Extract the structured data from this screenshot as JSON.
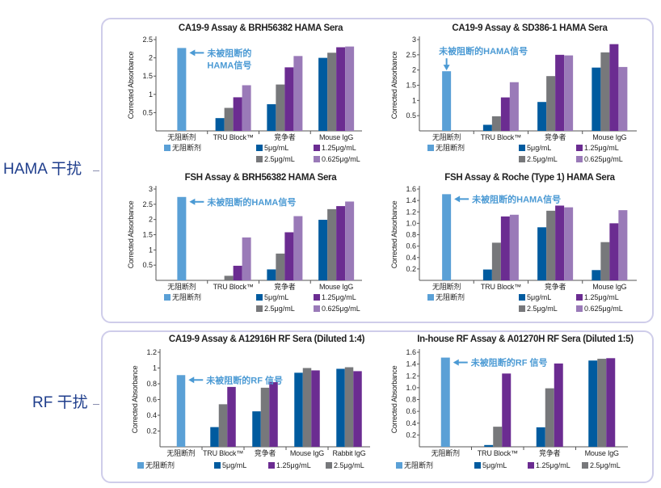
{
  "groups": {
    "hama": "HAMA 干扰",
    "rf": "RF 干扰"
  },
  "colors": {
    "no_blocker": "#5aa0d6",
    "5": "#005b9f",
    "2.5": "#77787b",
    "1.25": "#6b2c91",
    "0.625": "#9a7ab8",
    "annotation": "#4b9ad4"
  },
  "chart_data": [
    {
      "type": "bar",
      "title": "CA19-9 Assay & BRH56382 HAMA Sera",
      "ylabel": "Corrected Absorbance",
      "ylim": [
        0,
        2.5
      ],
      "yticks": [
        "0.5",
        "1",
        "1.5",
        "2",
        "2.5"
      ],
      "categories": [
        "无阻断剂",
        "TRU Block™",
        "竞争者",
        "Mouse IgG"
      ],
      "no_blocker": {
        "name": "无阻断剂",
        "value": 2.27
      },
      "series": [
        {
          "name": "5μg/mL",
          "key": "5",
          "values": [
            null,
            0.35,
            0.73,
            2.0
          ]
        },
        {
          "name": "2.5μg/mL",
          "key": "2.5",
          "values": [
            null,
            0.63,
            1.27,
            2.14
          ]
        },
        {
          "name": "1.25μg/mL",
          "key": "1.25",
          "values": [
            null,
            0.92,
            1.74,
            2.29
          ]
        },
        {
          "name": "0.625μg/mL",
          "key": "0.625",
          "values": [
            null,
            1.25,
            2.05,
            2.31
          ]
        }
      ],
      "annotation": [
        "未被阻断的",
        "HAMA信号"
      ]
    },
    {
      "type": "bar",
      "title": "CA19-9 Assay & SD386-1 HAMA Sera",
      "ylabel": "Corrected Absorbance",
      "ylim": [
        0,
        3
      ],
      "yticks": [
        "0.5",
        "1",
        "1.5",
        "2",
        "2.5",
        "3"
      ],
      "categories": [
        "无阻断剂",
        "TRU Block™",
        "竞争者",
        "Mouse IgG"
      ],
      "no_blocker": {
        "name": "无阻断剂",
        "value": 1.96
      },
      "series": [
        {
          "name": "5μg/mL",
          "key": "5",
          "values": [
            null,
            0.2,
            0.95,
            2.08
          ]
        },
        {
          "name": "2.5μg/mL",
          "key": "2.5",
          "values": [
            null,
            0.48,
            1.8,
            2.58
          ]
        },
        {
          "name": "1.25μg/mL",
          "key": "1.25",
          "values": [
            null,
            1.1,
            2.5,
            2.85
          ]
        },
        {
          "name": "0.625μg/mL",
          "key": "0.625",
          "values": [
            null,
            1.6,
            2.48,
            2.1
          ]
        }
      ],
      "annotation": [
        "未被阻断的HAMA信号"
      ]
    },
    {
      "type": "bar",
      "title": "FSH Assay & BRH56382 HAMA Sera",
      "ylabel": "Corrected Absorbance",
      "ylim": [
        0,
        3
      ],
      "yticks": [
        "0.5",
        "1",
        "1.5",
        "2",
        "2.5",
        "3"
      ],
      "categories": [
        "无阻断剂",
        "TRU Block™",
        "竞争者",
        "Mouse IgG"
      ],
      "no_blocker": {
        "name": "无阻断剂",
        "value": 2.74
      },
      "series": [
        {
          "name": "5μg/mL",
          "key": "5",
          "values": [
            null,
            0,
            0.36,
            1.99
          ]
        },
        {
          "name": "2.5μg/mL",
          "key": "2.5",
          "values": [
            null,
            0.15,
            0.88,
            2.34
          ]
        },
        {
          "name": "1.25μg/mL",
          "key": "1.25",
          "values": [
            null,
            0.48,
            1.58,
            2.44
          ]
        },
        {
          "name": "0.625μg/mL",
          "key": "0.625",
          "values": [
            null,
            1.41,
            2.11,
            2.59
          ]
        }
      ],
      "annotation": [
        "未被阻断的HAMA信号"
      ]
    },
    {
      "type": "bar",
      "title": "FSH Assay & Roche (Type 1) HAMA Sera",
      "ylabel": "Corrected Absorbance",
      "ylim": [
        0,
        1.6
      ],
      "yticks": [
        "0.2",
        "0.4",
        "0.6",
        "0.8",
        "1.0",
        "1.2",
        "1.4",
        "1.6"
      ],
      "categories": [
        "无阻断剂",
        "TRU Block™",
        "竞争者",
        "Mouse IgG"
      ],
      "no_blocker": {
        "name": "无阻断剂",
        "value": 1.51
      },
      "series": [
        {
          "name": "5μg/mL",
          "key": "5",
          "values": [
            null,
            0.19,
            0.93,
            0.18
          ]
        },
        {
          "name": "2.5μg/mL",
          "key": "2.5",
          "values": [
            null,
            0.66,
            1.22,
            0.67
          ]
        },
        {
          "name": "1.25μg/mL",
          "key": "1.25",
          "values": [
            null,
            1.12,
            1.31,
            1.0
          ]
        },
        {
          "name": "0.625μg/mL",
          "key": "0.625",
          "values": [
            null,
            1.15,
            1.28,
            1.23
          ]
        }
      ],
      "annotation": [
        "未被阻断的HAMA信号"
      ]
    },
    {
      "type": "bar",
      "title": "CA19-9 Assay & A12916H RF Sera (Diluted 1:4)",
      "ylabel": "Corrected Absorbance",
      "ylim": [
        0,
        1.2
      ],
      "yticks": [
        "0.2",
        "0.4",
        "0.6",
        "0.8",
        "1",
        "1.2"
      ],
      "categories": [
        "无阻断剂",
        "TRU Block™",
        "竞争者",
        "Mouse IgG",
        "Rabbit IgG"
      ],
      "no_blocker": {
        "name": "无阻断剂",
        "value": 0.91
      },
      "series": [
        {
          "name": "5μg/mL",
          "key": "5",
          "values": [
            null,
            0.25,
            0.45,
            0.94,
            0.99
          ]
        },
        {
          "name": "2.5μg/mL",
          "key": "2.5",
          "values": [
            null,
            0.54,
            0.75,
            1.0,
            1.01
          ]
        },
        {
          "name": "1.25μg/mL",
          "key": "1.25",
          "values": [
            null,
            0.76,
            0.82,
            0.97,
            0.96
          ]
        }
      ],
      "legend_order": [
        0,
        2,
        1
      ],
      "annotation": [
        "未被阻断的RF 信号"
      ]
    },
    {
      "type": "bar",
      "title": "In-house RF Assay & A01270H RF Sera (Diluted 1:5)",
      "ylabel": "Corrected Absorbance",
      "ylim": [
        0,
        1.6
      ],
      "yticks": [
        "0.2",
        "0.4",
        "0.6",
        "0.8",
        "1.0",
        "1.2",
        "1.4",
        "1.6"
      ],
      "categories": [
        "无阻断剂",
        "TRU Block™",
        "竞争者",
        "Mouse IgG"
      ],
      "no_blocker": {
        "name": "无阻断剂",
        "value": 1.51
      },
      "series": [
        {
          "name": "5μg/mL",
          "key": "5",
          "values": [
            null,
            0.03,
            0.33,
            1.46
          ]
        },
        {
          "name": "2.5μg/mL",
          "key": "2.5",
          "values": [
            null,
            0.34,
            0.99,
            1.49
          ]
        },
        {
          "name": "1.25μg/mL",
          "key": "1.25",
          "values": [
            null,
            1.24,
            1.41,
            1.5
          ]
        }
      ],
      "legend_order": [
        0,
        2,
        1
      ],
      "annotation": [
        "未被阻断的RF 信号"
      ]
    }
  ]
}
